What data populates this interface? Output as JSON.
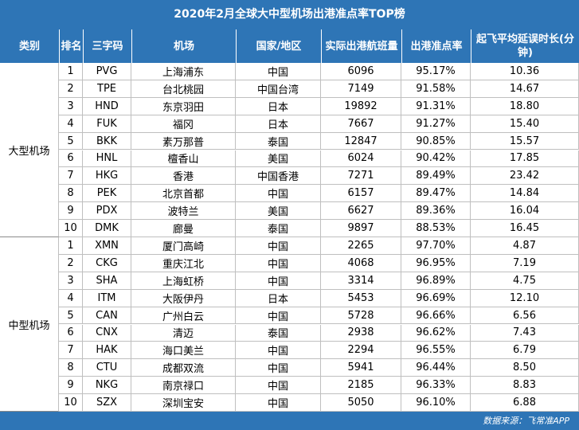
{
  "title": "2020年2月全球大中型机场出港准点率TOP榜",
  "footer": "数据来源：飞常准APP",
  "chart_data": {
    "type": "table",
    "columns": [
      "类别",
      "排名",
      "三字码",
      "机场",
      "国家/地区",
      "实际出港航班量",
      "出港准点率",
      "起飞平均延误时长(分钟)"
    ],
    "groups": [
      {
        "category": "大型机场",
        "rows": [
          [
            "1",
            "PVG",
            "上海浦东",
            "中国",
            "6096",
            "95.17%",
            "10.36"
          ],
          [
            "2",
            "TPE",
            "台北桃园",
            "中国台湾",
            "7149",
            "91.58%",
            "14.67"
          ],
          [
            "3",
            "HND",
            "东京羽田",
            "日本",
            "19892",
            "91.31%",
            "18.80"
          ],
          [
            "4",
            "FUK",
            "福冈",
            "日本",
            "7667",
            "91.27%",
            "15.40"
          ],
          [
            "5",
            "BKK",
            "素万那普",
            "泰国",
            "12847",
            "90.85%",
            "15.57"
          ],
          [
            "6",
            "HNL",
            "檀香山",
            "美国",
            "6024",
            "90.42%",
            "17.85"
          ],
          [
            "7",
            "HKG",
            "香港",
            "中国香港",
            "7271",
            "89.49%",
            "23.42"
          ],
          [
            "8",
            "PEK",
            "北京首都",
            "中国",
            "6157",
            "89.47%",
            "14.84"
          ],
          [
            "9",
            "PDX",
            "波特兰",
            "美国",
            "6627",
            "89.36%",
            "16.04"
          ],
          [
            "10",
            "DMK",
            "廊曼",
            "泰国",
            "9897",
            "88.53%",
            "16.45"
          ]
        ]
      },
      {
        "category": "中型机场",
        "rows": [
          [
            "1",
            "XMN",
            "厦门高崎",
            "中国",
            "2265",
            "97.70%",
            "4.87"
          ],
          [
            "2",
            "CKG",
            "重庆江北",
            "中国",
            "4068",
            "96.95%",
            "7.19"
          ],
          [
            "3",
            "SHA",
            "上海虹桥",
            "中国",
            "3314",
            "96.89%",
            "4.75"
          ],
          [
            "4",
            "ITM",
            "大阪伊丹",
            "日本",
            "5453",
            "96.69%",
            "12.10"
          ],
          [
            "5",
            "CAN",
            "广州白云",
            "中国",
            "5728",
            "96.66%",
            "6.56"
          ],
          [
            "6",
            "CNX",
            "清迈",
            "泰国",
            "2938",
            "96.62%",
            "7.43"
          ],
          [
            "7",
            "HAK",
            "海口美兰",
            "中国",
            "2294",
            "96.55%",
            "6.79"
          ],
          [
            "8",
            "CTU",
            "成都双流",
            "中国",
            "5941",
            "96.44%",
            "8.50"
          ],
          [
            "9",
            "NKG",
            "南京禄口",
            "中国",
            "2185",
            "96.33%",
            "8.83"
          ],
          [
            "10",
            "SZX",
            "深圳宝安",
            "中国",
            "5050",
            "96.10%",
            "6.88"
          ]
        ]
      }
    ]
  }
}
